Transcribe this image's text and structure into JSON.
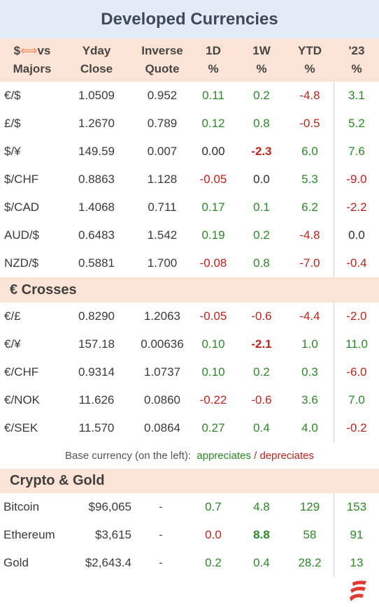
{
  "title": "Developed Currencies",
  "header": {
    "pair_line1_a": "$",
    "pair_arrow": "⟺",
    "pair_line1_b": "vs",
    "pair_line2": "Majors",
    "yday_1": "Yday",
    "yday_2": "Close",
    "inv_1": "Inverse",
    "inv_2": "Quote",
    "d1_1": "1D",
    "d1_2": "%",
    "w1_1": "1W",
    "w1_2": "%",
    "ytd_1": "YTD",
    "ytd_2": "%",
    "y23_1": "'23",
    "y23_2": "%"
  },
  "majors": [
    {
      "pair": "€/$",
      "close": "1.0509",
      "inverse": "0.952",
      "d1": "0.11",
      "w1": "0.2",
      "ytd": "-4.8",
      "y23": "3.1"
    },
    {
      "pair": "£/$",
      "close": "1.2670",
      "inverse": "0.789",
      "d1": "0.12",
      "w1": "0.8",
      "ytd": "-0.5",
      "y23": "5.2"
    },
    {
      "pair": "$/¥",
      "close": "149.59",
      "inverse": "0.007",
      "d1": "0.00",
      "w1": "-2.3",
      "ytd": "6.0",
      "y23": "7.6"
    },
    {
      "pair": "$/CHF",
      "close": "0.8863",
      "inverse": "1.128",
      "d1": "-0.05",
      "w1": "0.0",
      "ytd": "5.3",
      "y23": "-9.0"
    },
    {
      "pair": "$/CAD",
      "close": "1.4068",
      "inverse": "0.711",
      "d1": "0.17",
      "w1": "0.1",
      "ytd": "6.2",
      "y23": "-2.2"
    },
    {
      "pair": "AUD/$",
      "close": "0.6483",
      "inverse": "1.542",
      "d1": "0.19",
      "w1": "0.2",
      "ytd": "-4.8",
      "y23": "0.0"
    },
    {
      "pair": "NZD/$",
      "close": "0.5881",
      "inverse": "1.700",
      "d1": "-0.08",
      "w1": "0.8",
      "ytd": "-7.0",
      "y23": "-0.4"
    }
  ],
  "crosses_title": "€ Crosses",
  "crosses": [
    {
      "pair": "€/£",
      "close": "0.8290",
      "inverse": "1.2063",
      "d1": "-0.05",
      "w1": "-0.6",
      "ytd": "-4.4",
      "y23": "-2.0"
    },
    {
      "pair": "€/¥",
      "close": "157.18",
      "inverse": "0.00636",
      "d1": "0.10",
      "w1": "-2.1",
      "ytd": "1.0",
      "y23": "11.0"
    },
    {
      "pair": "€/CHF",
      "close": "0.9314",
      "inverse": "1.0737",
      "d1": "0.10",
      "w1": "0.2",
      "ytd": "0.3",
      "y23": "-6.0"
    },
    {
      "pair": "€/NOK",
      "close": "11.626",
      "inverse": "0.0860",
      "d1": "-0.22",
      "w1": "-0.6",
      "ytd": "3.6",
      "y23": "7.0"
    },
    {
      "pair": "€/SEK",
      "close": "11.570",
      "inverse": "0.0864",
      "d1": "0.27",
      "w1": "0.4",
      "ytd": "4.0",
      "y23": "-0.2"
    }
  ],
  "legend": {
    "prefix": "Base currency (on the left):",
    "appreciates": "appreciates",
    "separator": "/",
    "depreciates": "depreciates"
  },
  "crypto_title": "Crypto & Gold",
  "crypto": [
    {
      "name": "Bitcoin",
      "close": "$96,065",
      "inverse": "-",
      "d1": "0.7",
      "w1": "4.8",
      "ytd": "129",
      "y23": "153"
    },
    {
      "name": "Ethereum",
      "close": "$3,615",
      "inverse": "-",
      "d1": "0.0",
      "w1": "8.8",
      "ytd": "58",
      "y23": "91"
    },
    {
      "name": "Gold",
      "close": "$2,643.4",
      "inverse": "-",
      "d1": "0.2",
      "w1": "0.4",
      "ytd": "28.2",
      "y23": "13"
    }
  ],
  "colors": {
    "title_bg": "#e1ecf6",
    "header_bg": "#fbe4d6",
    "positive": "#2a8a24",
    "negative": "#c0231b",
    "neutral": "#2a2a2a"
  },
  "emphasis": [
    "majors.2.w1",
    "crosses.1.w1",
    "crypto.1.w1"
  ],
  "logo_icon": "flame-logo-icon"
}
